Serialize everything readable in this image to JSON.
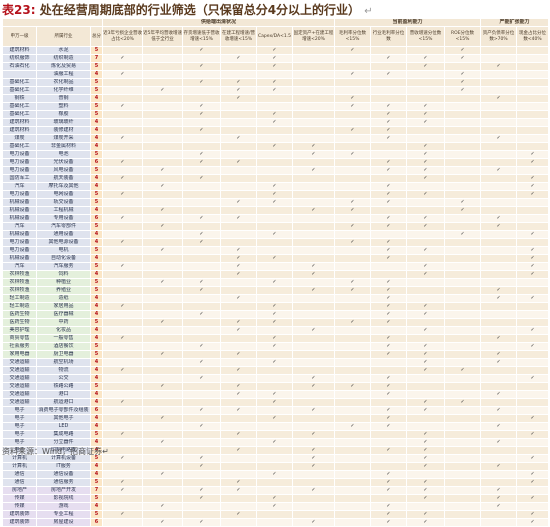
{
  "title": {
    "label": "表23:",
    "text": "处在经营周期底部的行业筛选（只保留总分4分以上的行业）",
    "return_glyph": "↵"
  },
  "groups": [
    "",
    "",
    "",
    "供给端出清状况",
    "当前盈利能力",
    "",
    "产能扩张能力"
  ],
  "headers": [
    "申万一级",
    "所属行业",
    "总分",
    "近3年亏损企业营收占比<20%",
    "近5年平均营收增速低于全行业",
    "存货增速低于营收增速<15%",
    "在建工程增速/营收增速<15%",
    "Capex/DA<1.5",
    "固定资产+在建工程增速<20%",
    "毛利率分位数<15%",
    "行业毛利率分位数",
    "营收增速分位数<15%",
    "ROE分位数<15%",
    "资产负债率分位数>70%",
    "现金占比分位数<40%"
  ],
  "rows": [
    {
      "sw": "建筑材料",
      "ind": "水泥",
      "score": 5,
      "c": "__✓_✓_✓__✓__"
    },
    {
      "sw": "纺织服饰",
      "ind": "纺织制造",
      "score": 7,
      "c": "✓__✓✓__✓✓✓__"
    },
    {
      "sw": "石油石化",
      "ind": "炼化及贸易",
      "score": 5,
      "c": "__✓_✓___✓_✓_"
    },
    {
      "sw": "",
      "ind": "油服工程",
      "score": 4,
      "c": "✓_____✓✓_✓__"
    },
    {
      "sw": "基础化工",
      "ind": "农化制品",
      "score": 5,
      "c": "__✓✓✓____✓__"
    },
    {
      "sw": "基础化工",
      "ind": "化学纤维",
      "score": 5,
      "c": "_✓_✓✓____✓__"
    },
    {
      "sw": "钢铁",
      "ind": "普钢",
      "score": 4,
      "c": "___✓__✓___✓_"
    },
    {
      "sw": "基础化工",
      "ind": "塑料",
      "score": 5,
      "c": "✓_✓___✓✓✓___"
    },
    {
      "sw": "基础化工",
      "ind": "橡胶",
      "score": 5,
      "c": "__✓_✓__✓✓___"
    },
    {
      "sw": "建筑材料",
      "ind": "玻璃玻纤",
      "score": 4,
      "c": "____✓__✓✓___"
    },
    {
      "sw": "建筑材料",
      "ind": "装修建材",
      "score": 4,
      "c": "__✓___✓✓____"
    },
    {
      "sw": "煤炭",
      "ind": "煤炭开采",
      "score": 4,
      "c": "✓__✓___✓__✓_"
    },
    {
      "sw": "基础化工",
      "ind": "非金属材料",
      "score": 4,
      "c": "____✓✓__✓___"
    },
    {
      "sw": "电力设备",
      "ind": "电池",
      "score": 5,
      "c": "__✓__✓✓_✓__✓"
    },
    {
      "sw": "电力设备",
      "ind": "光伏设备",
      "score": 6,
      "c": "✓_✓✓___✓✓__✓"
    },
    {
      "sw": "电力设备",
      "ind": "风电设备",
      "score": 5,
      "c": "_✓___✓_✓✓_✓_"
    },
    {
      "sw": "国防军工",
      "ind": "航天装备",
      "score": 4,
      "c": "✓_✓_____✓__✓"
    },
    {
      "sw": "汽车",
      "ind": "摩托车及其他",
      "score": 4,
      "c": "_✓__✓__✓___✓"
    },
    {
      "sw": "电力设备",
      "ind": "电网设备",
      "score": 5,
      "c": "✓___✓__✓✓__✓"
    },
    {
      "sw": "机械设备",
      "ind": "轨交设备",
      "score": 5,
      "c": "___✓✓_✓✓_✓__"
    },
    {
      "sw": "机械设备",
      "ind": "工程机械",
      "score": 4,
      "c": "_✓___✓✓__✓__"
    },
    {
      "sw": "机械设备",
      "ind": "专用设备",
      "score": 6,
      "c": "✓_✓✓___✓✓_✓_"
    },
    {
      "sw": "汽车",
      "ind": "汽车零部件",
      "score": 5,
      "c": "_✓____✓✓✓_✓_"
    },
    {
      "sw": "机械设备",
      "ind": "通用设备",
      "score": 4,
      "c": "__✓_✓____✓_✓"
    },
    {
      "sw": "电力设备",
      "ind": "其他电源设备",
      "score": 4,
      "c": "✓_✓___✓✓____"
    },
    {
      "sw": "电力设备",
      "ind": "电机",
      "score": 5,
      "c": "_✓_✓___✓✓__✓"
    },
    {
      "sw": "机械设备",
      "ind": "自动化设备",
      "score": 4,
      "c": "___✓✓__✓___✓"
    },
    {
      "sw": "汽车",
      "ind": "汽车服务",
      "score": 5,
      "c": "✓__✓_✓__✓__✓"
    },
    {
      "sw": "农林牧渔",
      "ind": "饲料",
      "score": 4,
      "c": "___✓_✓__✓__✓"
    },
    {
      "sw": "农林牧渔",
      "ind": "种植业",
      "score": 5,
      "c": "_✓✓_✓_✓✓____"
    },
    {
      "sw": "农林牧渔",
      "ind": "养殖业",
      "score": 5,
      "c": "__✓__✓✓✓__✓_"
    },
    {
      "sw": "轻工制造",
      "ind": "造纸",
      "score": 4,
      "c": "___✓___✓__✓✓"
    },
    {
      "sw": "轻工制造",
      "ind": "家居用品",
      "score": 4,
      "c": "✓___✓__✓✓___"
    },
    {
      "sw": "医药生物",
      "ind": "医疗器械",
      "score": 4,
      "c": "__✓_✓__✓✓___"
    },
    {
      "sw": "医药生物",
      "ind": "中药",
      "score": 5,
      "c": "_✓_✓✓_✓✓____"
    },
    {
      "sw": "美容护理",
      "ind": "化妆品",
      "score": 4,
      "c": "___✓_✓__✓__✓"
    },
    {
      "sw": "商贸零售",
      "ind": "一般零售",
      "score": 4,
      "c": "✓___✓__✓__✓_"
    },
    {
      "sw": "社会服务",
      "ind": "酒店餐饮",
      "score": 5,
      "c": "__✓_✓__✓✓__✓"
    },
    {
      "sw": "家用电器",
      "ind": "厨卫电器",
      "score": 5,
      "c": "_✓_✓___✓✓_✓_"
    },
    {
      "sw": "交通运输",
      "ind": "航空机场",
      "score": 4,
      "c": "__✓_✓___✓_✓_"
    },
    {
      "sw": "交通运输",
      "ind": "物流",
      "score": 4,
      "c": "✓__✓____✓✓__"
    },
    {
      "sw": "交通运输",
      "ind": "公交",
      "score": 4,
      "c": "__✓__✓_✓___✓"
    },
    {
      "sw": "交通运输",
      "ind": "铁路公路",
      "score": 5,
      "c": "_✓_✓_✓✓✓____"
    },
    {
      "sw": "交通运输",
      "ind": "港口",
      "score": 4,
      "c": "___✓✓__✓__✓_"
    },
    {
      "sw": "交通运输",
      "ind": "航运港口",
      "score": 4,
      "c": "✓___✓___✓✓__"
    },
    {
      "sw": "电子",
      "ind": "消费电子零部件及组装",
      "score": 6,
      "c": "__✓✓_✓_✓✓_✓_"
    },
    {
      "sw": "电子",
      "ind": "其他电子",
      "score": 4,
      "c": "_✓__✓__✓___✓"
    },
    {
      "sw": "电子",
      "ind": "LED",
      "score": 4,
      "c": "__✓___✓✓__✓_"
    },
    {
      "sw": "电子",
      "ind": "集成电路",
      "score": 5,
      "c": "✓__✓_✓__✓__✓"
    },
    {
      "sw": "电子",
      "ind": "分立器件",
      "score": 4,
      "c": "_✓__✓___✓_✓_"
    },
    {
      "sw": "电子",
      "ind": "印制电路板",
      "score": 4,
      "c": "___✓_✓_✓✓___"
    },
    {
      "sw": "计算机",
      "ind": "计算机设备",
      "score": 5,
      "c": "✓_✓__✓__✓__✓"
    },
    {
      "sw": "计算机",
      "ind": "IT服务",
      "score": 4,
      "c": "__✓__✓__✓_✓_"
    },
    {
      "sw": "通信",
      "ind": "通信设备",
      "score": 4,
      "c": "_✓__✓__✓___✓"
    },
    {
      "sw": "通信",
      "ind": "通信服务",
      "score": 5,
      "c": "✓__✓___✓✓__✓"
    },
    {
      "sw": "房地产",
      "ind": "房地产开发",
      "score": 7,
      "c": "✓_✓✓_✓_✓✓_✓_"
    },
    {
      "sw": "传媒",
      "ind": "影视院线",
      "score": 5,
      "c": "__✓_✓___✓_✓✓"
    },
    {
      "sw": "传媒",
      "ind": "游戏",
      "score": 4,
      "c": "_✓__✓__✓__✓_"
    },
    {
      "sw": "建筑装饰",
      "ind": "专业工程",
      "score": 5,
      "c": "✓__✓___✓✓__✓"
    },
    {
      "sw": "建筑装饰",
      "ind": "房屋建设",
      "score": 6,
      "c": "_✓✓__✓_✓✓__✓"
    }
  ],
  "source": {
    "label": "资料来源：",
    "text": "Wind，招商证券",
    "return_glyph": "↵"
  }
}
